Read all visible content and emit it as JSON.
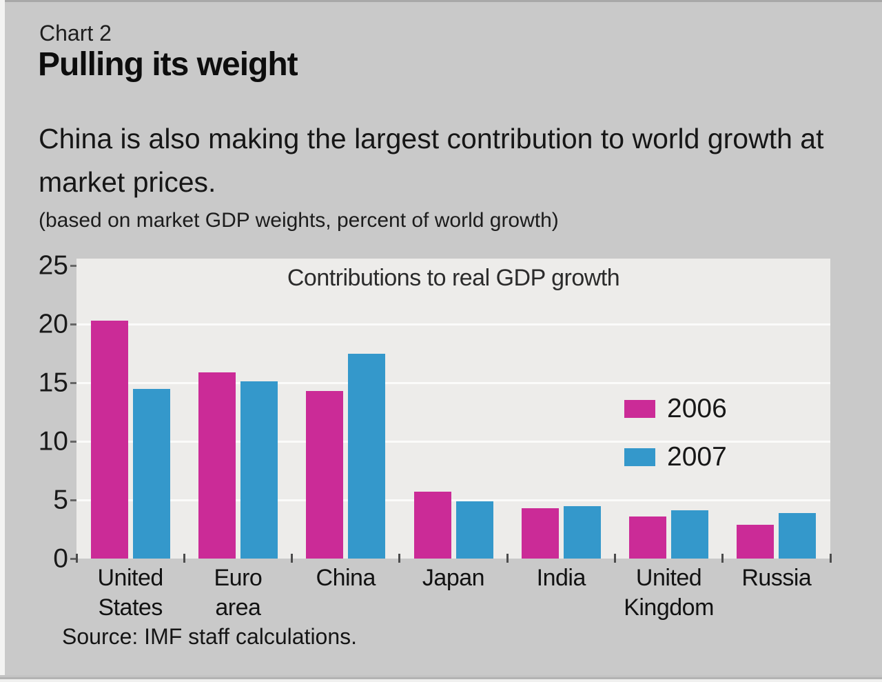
{
  "header": {
    "chart_label": "Chart 2",
    "title": "Pulling its weight",
    "subtitle": "China is also making the largest contribution to world growth at market prices.",
    "note": "(based on market GDP weights, percent of world growth)"
  },
  "chart_data": {
    "type": "bar",
    "title": "Contributions to real GDP growth",
    "categories": [
      "United\nStates",
      "Euro\narea",
      "China",
      "Japan",
      "India",
      "United\nKingdom",
      "Russia"
    ],
    "series": [
      {
        "name": "2006",
        "color": "#cb2b97",
        "values": [
          20.3,
          15.9,
          14.3,
          5.7,
          4.3,
          3.6,
          2.9
        ]
      },
      {
        "name": "2007",
        "color": "#3498cb",
        "values": [
          14.5,
          15.1,
          17.5,
          4.9,
          4.5,
          4.1,
          3.9
        ]
      }
    ],
    "ylim": [
      0,
      25
    ],
    "yticks": [
      0,
      5,
      10,
      15,
      20,
      25
    ],
    "grid": true,
    "legend_position": "upper-right-inside",
    "plot_background": "#edecea",
    "page_background": "#c9c9c9"
  },
  "source": "Source: IMF staff calculations."
}
